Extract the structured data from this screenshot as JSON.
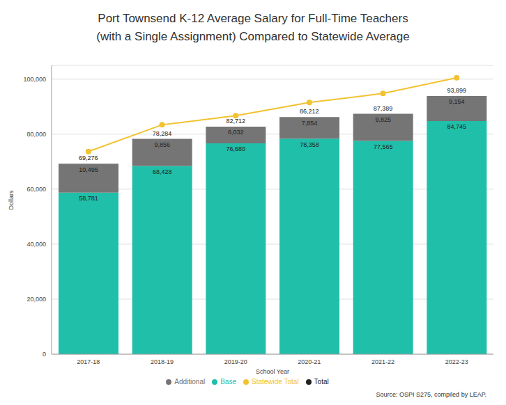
{
  "chart_data": {
    "type": "bar",
    "title": "Port Townsend K-12 Average Salary for Full-Time Teachers\n(with a Single Assignment) Compared to Statewide Average",
    "x_label": "School Year",
    "y_label": "Dollars",
    "annotation": "Source: OSPI S275, compiled by LEAP.",
    "categories": [
      "2017-18",
      "2018-19",
      "2019-20",
      "2020-21",
      "2021-22",
      "2022-23"
    ],
    "stacked": true,
    "grid": true,
    "legend": "bottom",
    "ylim": [
      0,
      105000
    ],
    "yticks": [
      0,
      {
        "value": 20000,
        "label": "20,000"
      },
      {
        "value": 40000,
        "label": "40,000"
      },
      {
        "value": 60000,
        "label": "60,000"
      },
      {
        "value": 80000,
        "label": "80,000"
      },
      {
        "value": 100000,
        "label": "100,000"
      }
    ],
    "series": [
      {
        "name": "Base",
        "type": "bar",
        "color": "#20bfa9",
        "data_labels": true,
        "values": [
          58781,
          68428,
          76680,
          78358,
          77565,
          84745
        ],
        "value_labels": [
          "58,781",
          "68,428",
          "76,680",
          "78,358",
          "77,565",
          "84,745"
        ]
      },
      {
        "name": "Additional",
        "type": "bar",
        "color": "#757575",
        "data_labels": true,
        "values": [
          10495,
          9856,
          6032,
          7854,
          9825,
          9154
        ],
        "value_labels": [
          "10,495",
          "9,856",
          "6,032",
          "7,854",
          "9,825",
          "9,154"
        ]
      },
      {
        "name": "Total",
        "type": "label",
        "color": "#222222",
        "data_labels": true,
        "values": [
          69276,
          78284,
          82712,
          86212,
          87389,
          93899
        ],
        "value_labels": [
          "69,276",
          "78,284",
          "82,712",
          "86,212",
          "87,389",
          "93,899"
        ]
      },
      {
        "name": "Statewide Total",
        "type": "line",
        "color": "#f2c230",
        "marker": "circle",
        "data_labels": false,
        "values": [
          73700,
          83400,
          86700,
          91500,
          94800,
          100500
        ]
      }
    ]
  }
}
